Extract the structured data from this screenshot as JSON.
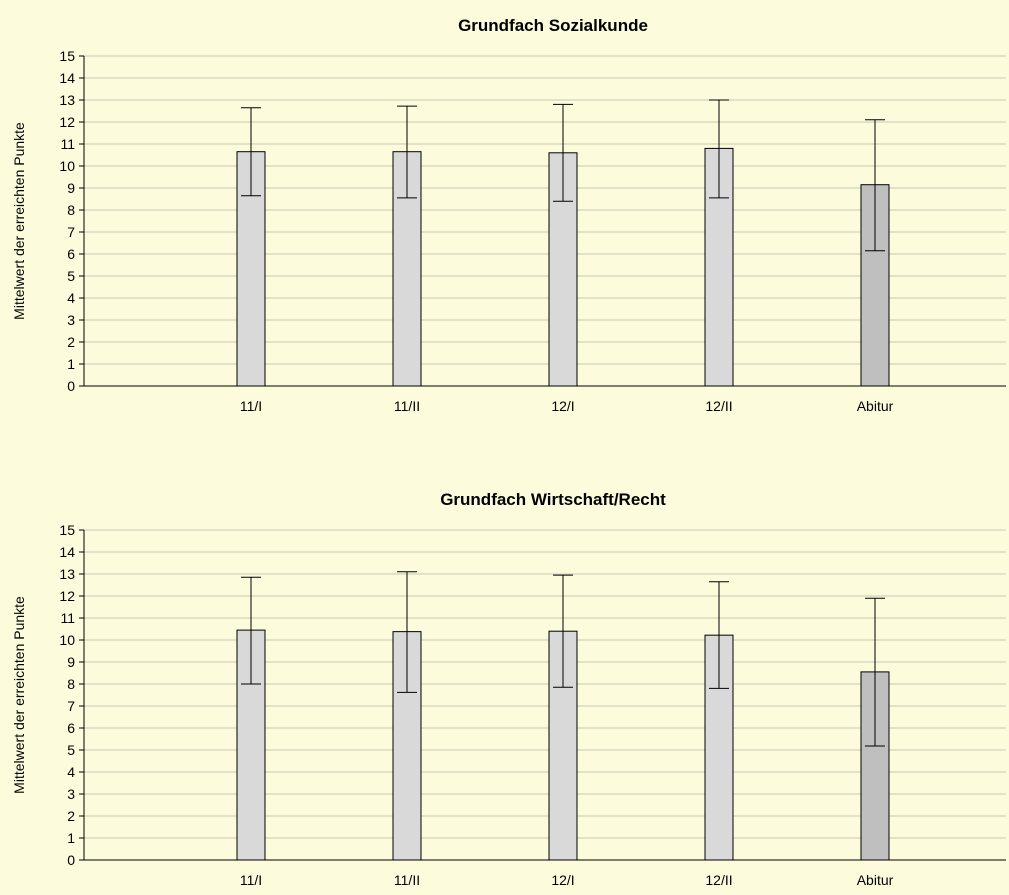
{
  "page": {
    "background": "#fcfcdc"
  },
  "chart_data": [
    {
      "type": "bar",
      "title": "Grundfach Sozialkunde",
      "xlabel": "",
      "ylabel": "Mittelwert der erreichten Punkte",
      "ylim": [
        0,
        15
      ],
      "yticks": [
        "0",
        "1",
        "2",
        "3",
        "4",
        "5",
        "6",
        "7",
        "8",
        "9",
        "10",
        "11",
        "12",
        "13",
        "14",
        "15"
      ],
      "grid": "horizontal",
      "legend": "none",
      "categories": [
        "11/I",
        "11/II",
        "12/I",
        "12/II",
        "Abitur"
      ],
      "values": [
        10.65,
        10.65,
        10.6,
        10.8,
        9.15
      ],
      "error_low": [
        8.65,
        8.55,
        8.4,
        8.55,
        6.15
      ],
      "error_high": [
        12.65,
        12.72,
        12.8,
        13.0,
        12.1
      ],
      "bar_colors": [
        "#d9d9d9",
        "#d9d9d9",
        "#d9d9d9",
        "#d9d9d9",
        "#bfbfbf"
      ]
    },
    {
      "type": "bar",
      "title": "Grundfach Wirtschaft/Recht",
      "xlabel": "",
      "ylabel": "Mittelwert der erreichten Punkte",
      "ylim": [
        0,
        15
      ],
      "yticks": [
        "0",
        "1",
        "2",
        "3",
        "4",
        "5",
        "6",
        "7",
        "8",
        "9",
        "10",
        "11",
        "12",
        "13",
        "14",
        "15"
      ],
      "grid": "horizontal",
      "legend": "none",
      "categories": [
        "11/I",
        "11/II",
        "12/I",
        "12/II",
        "Abitur"
      ],
      "values": [
        10.45,
        10.38,
        10.4,
        10.22,
        8.55
      ],
      "error_low": [
        8.0,
        7.62,
        7.85,
        7.8,
        5.18
      ],
      "error_high": [
        12.85,
        13.1,
        12.95,
        12.65,
        11.9
      ],
      "bar_colors": [
        "#d9d9d9",
        "#d9d9d9",
        "#d9d9d9",
        "#d9d9d9",
        "#bfbfbf"
      ]
    }
  ]
}
